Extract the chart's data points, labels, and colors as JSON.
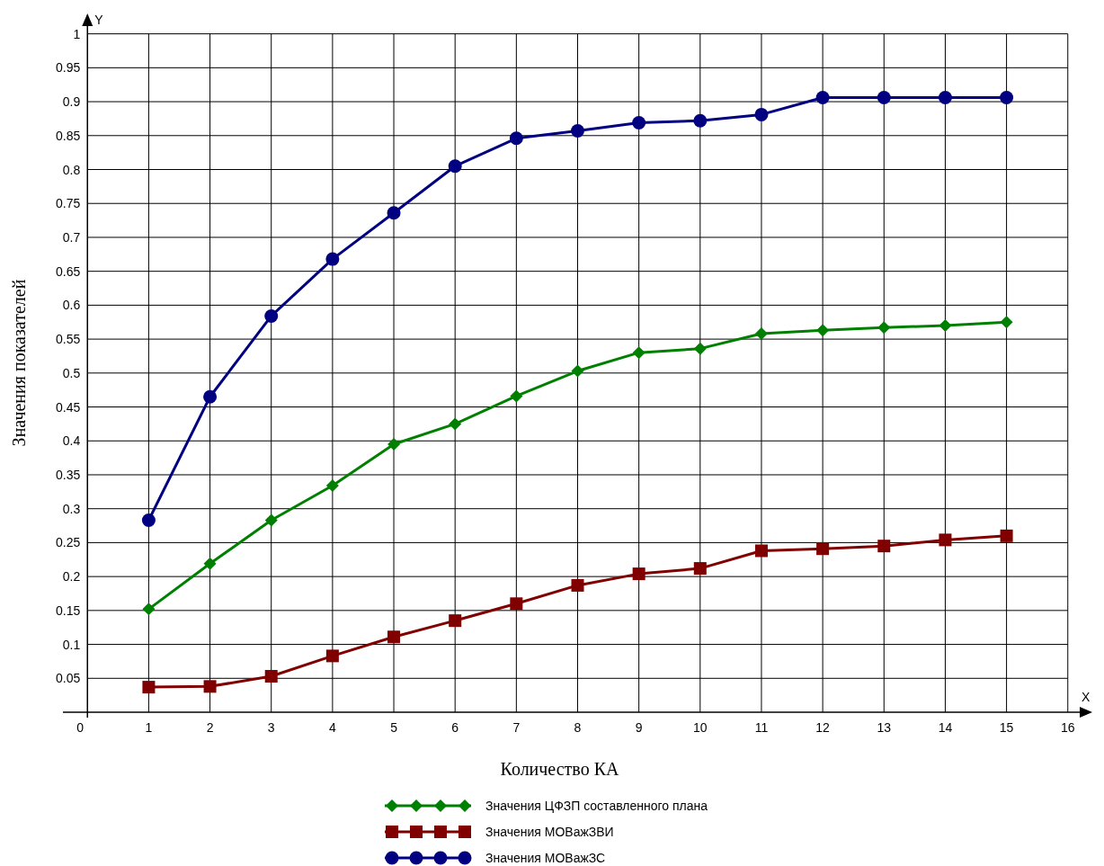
{
  "chart_data": {
    "type": "line",
    "xlabel": "Количество КА",
    "ylabel": "Значения показателей",
    "x": [
      1,
      2,
      3,
      4,
      5,
      6,
      7,
      8,
      9,
      10,
      11,
      12,
      13,
      14,
      15
    ],
    "series": [
      {
        "name": "Значения ЦФЗП составленного плана",
        "color": "#008000",
        "marker": "diamond",
        "values": [
          0.152,
          0.219,
          0.283,
          0.334,
          0.395,
          0.425,
          0.466,
          0.503,
          0.53,
          0.536,
          0.558,
          0.563,
          0.567,
          0.57,
          0.575
        ]
      },
      {
        "name": "Значения МОВажЗВИ",
        "color": "#800000",
        "marker": "square",
        "values": [
          0.037,
          0.038,
          0.053,
          0.083,
          0.111,
          0.135,
          0.16,
          0.187,
          0.204,
          0.212,
          0.238,
          0.241,
          0.245,
          0.254,
          0.26
        ]
      },
      {
        "name": "Значения МОВажЗС",
        "color": "#000080",
        "marker": "circle",
        "values": [
          0.283,
          0.465,
          0.584,
          0.668,
          0.736,
          0.805,
          0.846,
          0.857,
          0.869,
          0.872,
          0.881,
          0.906,
          0.906,
          0.906,
          0.906
        ]
      }
    ],
    "xlim": [
      -0.4,
      16.4
    ],
    "ylim": [
      0,
      1.03
    ],
    "xticks": [
      0,
      1,
      2,
      3,
      4,
      5,
      6,
      7,
      8,
      9,
      10,
      11,
      12,
      13,
      14,
      15,
      16
    ],
    "yticks": [
      0.05,
      0.1,
      0.15,
      0.2,
      0.25,
      0.3,
      0.35,
      0.4,
      0.45,
      0.5,
      0.55,
      0.6,
      0.65,
      0.7,
      0.75,
      0.8,
      0.85,
      0.9,
      0.95,
      1
    ],
    "grid": true,
    "legend": "bottom",
    "line_style": "solid",
    "annotations": [
      "X",
      "Y"
    ]
  }
}
